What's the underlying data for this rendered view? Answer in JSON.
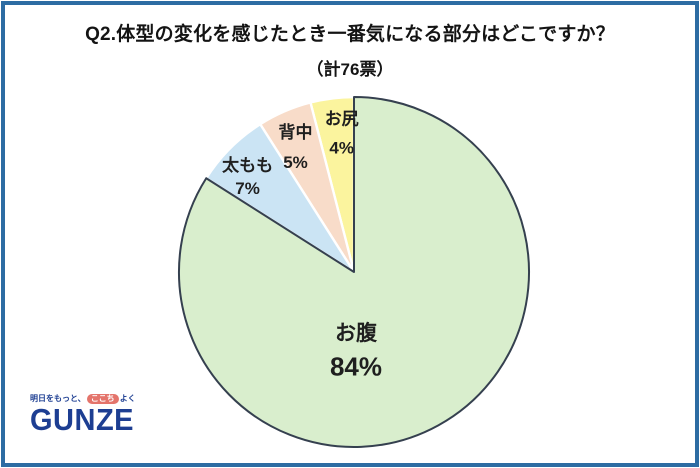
{
  "header": {
    "title_line1": "Q2.体型の変化を感じたとき一番気になる部分はどこですか？",
    "title_line2": "（計76票）"
  },
  "chart_data": {
    "type": "pie",
    "title": "Q2.体型の変化を感じたとき一番気になる部分はどこですか？",
    "subtitle": "（計76票）",
    "total_votes": 76,
    "unit": "%",
    "start_angle_deg": 0,
    "direction": "clockwise",
    "legend": "none",
    "labels_on_slices": true,
    "slices": [
      {
        "label": "お腹",
        "value": 84,
        "pct_label": "84%",
        "color": "#d9eecd",
        "stroke": "#35404f"
      },
      {
        "label": "太もも",
        "value": 7,
        "pct_label": "7%",
        "color": "#cbe4f4",
        "stroke": "#ffffff"
      },
      {
        "label": "背中",
        "value": 5,
        "pct_label": "5%",
        "color": "#f8dcc9",
        "stroke": "#ffffff"
      },
      {
        "label": "お尻",
        "value": 4,
        "pct_label": "4%",
        "color": "#fbf49e",
        "stroke": "#ffffff"
      }
    ],
    "label_color": "#1f1f1f"
  },
  "logo": {
    "tagline_prefix": "明日をもっと、",
    "tagline_highlight": "ここち",
    "tagline_suffix": "よく",
    "wordmark": "GUNZE",
    "wordmark_color": "#1d3e92",
    "highlight_color": "#e4746b"
  },
  "frame": {
    "border_color": "#2d6ca3"
  }
}
